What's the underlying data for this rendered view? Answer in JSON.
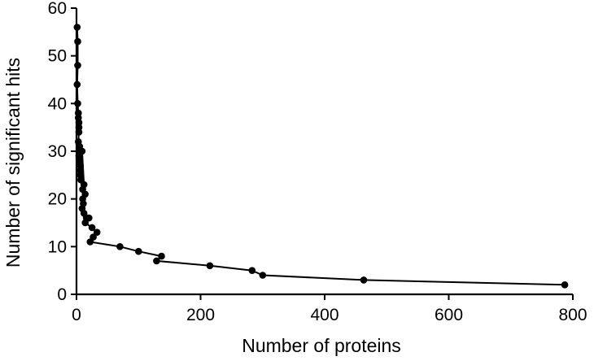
{
  "chart_data": {
    "type": "scatter",
    "title": "",
    "xlabel": "Number of proteins",
    "ylabel": "Number of significant hits",
    "xlim": [
      0,
      800
    ],
    "ylim": [
      0,
      60
    ],
    "xticks": [
      0,
      200,
      400,
      600,
      800
    ],
    "yticks": [
      0,
      10,
      20,
      30,
      40,
      50,
      60
    ],
    "grid": false,
    "legend": "none",
    "connected": true,
    "series": [
      {
        "marker": "filled-circle",
        "color": "#000000",
        "points": [
          [
            1,
            56
          ],
          [
            2,
            53
          ],
          [
            2,
            48
          ],
          [
            1,
            44
          ],
          [
            2,
            40
          ],
          [
            3,
            38
          ],
          [
            3,
            37
          ],
          [
            4,
            36
          ],
          [
            4,
            35
          ],
          [
            4,
            34
          ],
          [
            3,
            32
          ],
          [
            5,
            31
          ],
          [
            5,
            30
          ],
          [
            4,
            29
          ],
          [
            5,
            28
          ],
          [
            6,
            27
          ],
          [
            6,
            26
          ],
          [
            6,
            25
          ],
          [
            7,
            24
          ],
          [
            9,
            30
          ],
          [
            12,
            23
          ],
          [
            10,
            22
          ],
          [
            14,
            21
          ],
          [
            10,
            20
          ],
          [
            11,
            19
          ],
          [
            9,
            18
          ],
          [
            12,
            17
          ],
          [
            16,
            16
          ],
          [
            20,
            16
          ],
          [
            14,
            15
          ],
          [
            25,
            14
          ],
          [
            33,
            13
          ],
          [
            27,
            12
          ],
          [
            22,
            11
          ],
          [
            70,
            10
          ],
          [
            100,
            9
          ],
          [
            137,
            8
          ],
          [
            129,
            7
          ],
          [
            215,
            6
          ],
          [
            283,
            5
          ],
          [
            300,
            4
          ],
          [
            463,
            3
          ],
          [
            787,
            2
          ]
        ]
      }
    ]
  }
}
